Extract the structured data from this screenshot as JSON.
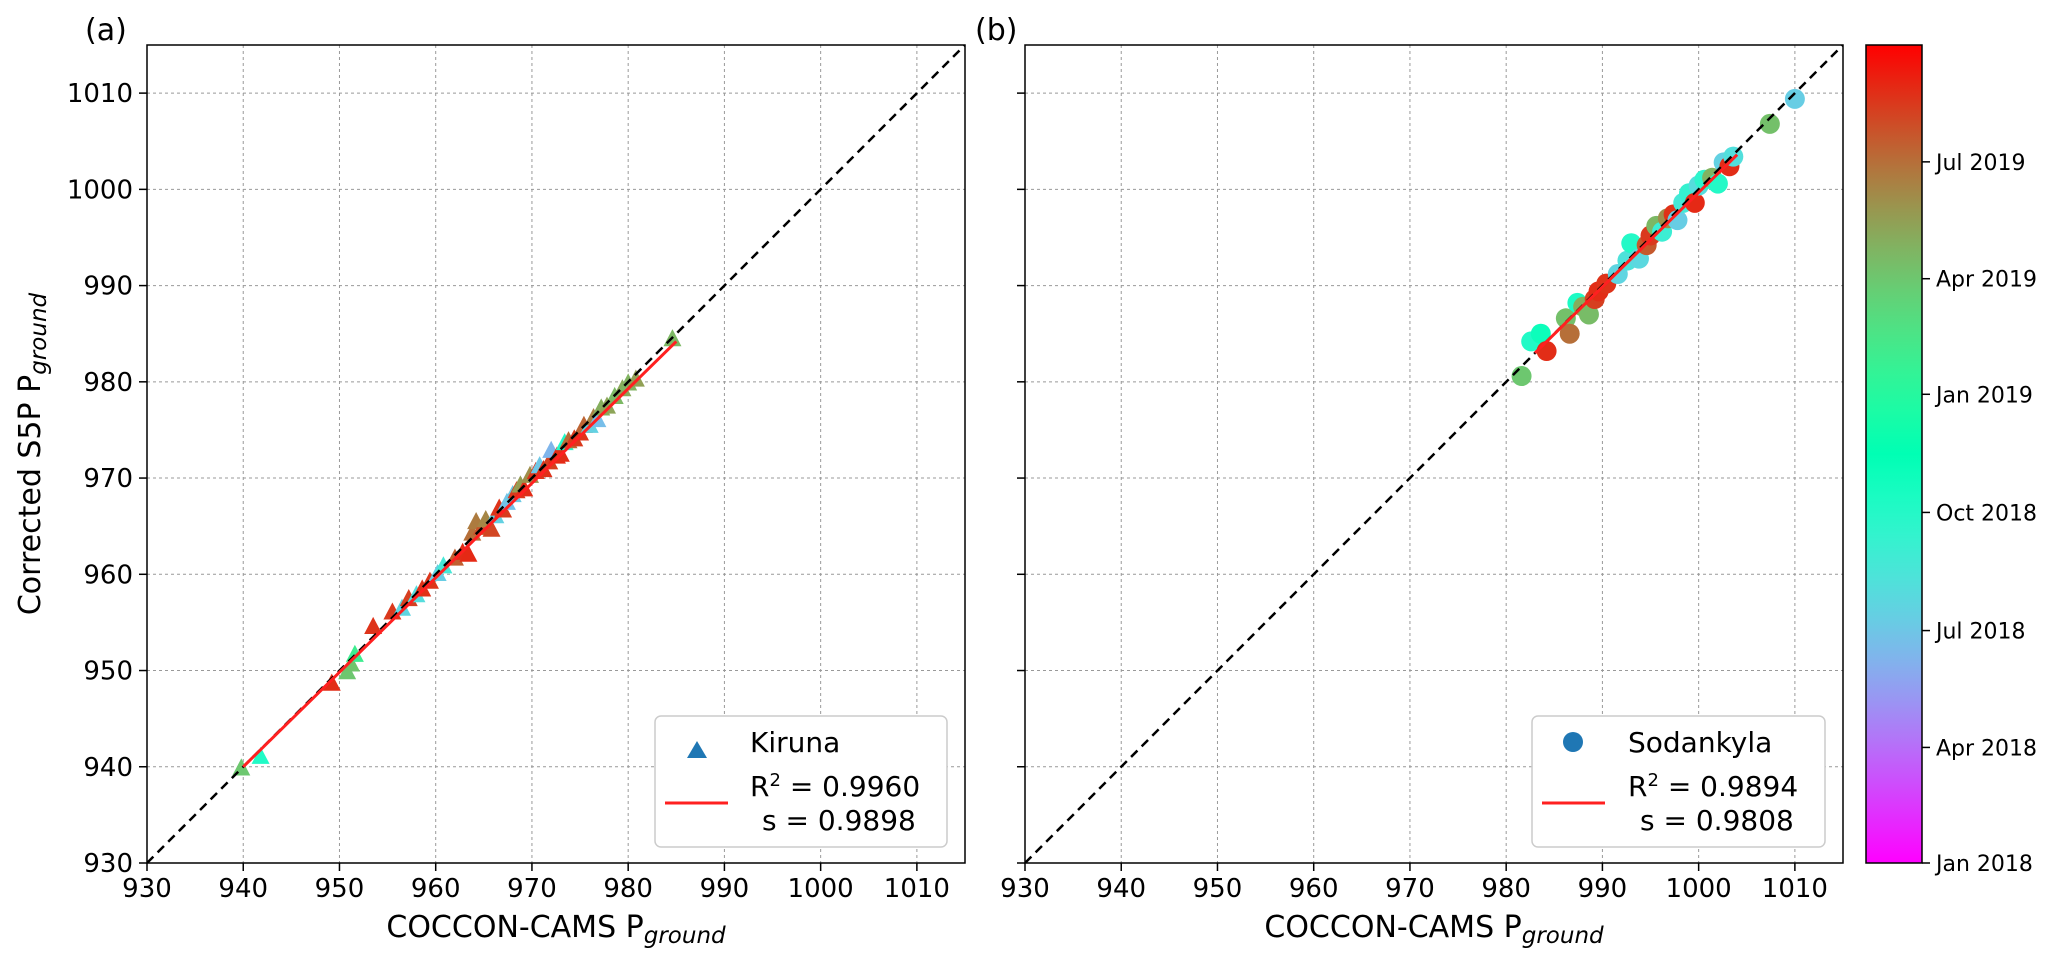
{
  "chart_data": [
    {
      "type": "scatter",
      "panel_label": "(a)",
      "xlabel": "COCCON-CAMS P",
      "xlabel_sub": "ground",
      "ylabel": "Corrected S5P P",
      "ylabel_sub": "ground",
      "xlim": [
        930,
        1015
      ],
      "ylim": [
        930,
        1015
      ],
      "xticks": [
        "930",
        "940",
        "950",
        "960",
        "970",
        "980",
        "990",
        "1000",
        "1010"
      ],
      "yticks": [
        "930",
        "940",
        "950",
        "960",
        "970",
        "980",
        "990",
        "1000",
        "1010"
      ],
      "grid": true,
      "identity_line": true,
      "legend_position": "bottom-right",
      "legend": {
        "series_label": "Kiruna",
        "r2_text": "R",
        "r2_sup": "2",
        "r2_value": " = 0.9960",
        "slope_text": "s = 0.9898"
      },
      "marker": "triangle",
      "marker_legend_color": "#1f77b4",
      "fit_line": {
        "x": [
          940,
          985
        ],
        "y": [
          940.0,
          984.2
        ],
        "color": "#ff2020"
      },
      "points": [
        {
          "x": 939.8,
          "y": 939.8,
          "d": "2019-04-01"
        },
        {
          "x": 941.8,
          "y": 941.0,
          "d": "2018-10-05"
        },
        {
          "x": 949.2,
          "y": 948.6,
          "d": "2019-08-25"
        },
        {
          "x": 950.8,
          "y": 949.8,
          "d": "2019-04-01"
        },
        {
          "x": 951.2,
          "y": 950.6,
          "d": "2019-04-05"
        },
        {
          "x": 951.6,
          "y": 951.6,
          "d": "2019-02-01"
        },
        {
          "x": 953.5,
          "y": 954.5,
          "d": "2019-08-20"
        },
        {
          "x": 955.5,
          "y": 956.0,
          "d": "2019-08-15"
        },
        {
          "x": 956.5,
          "y": 956.4,
          "d": "2018-07-20"
        },
        {
          "x": 957.2,
          "y": 957.4,
          "d": "2019-08-10"
        },
        {
          "x": 958.0,
          "y": 957.8,
          "d": "2018-08-01"
        },
        {
          "x": 958.6,
          "y": 958.4,
          "d": "2019-08-22"
        },
        {
          "x": 959.4,
          "y": 959.2,
          "d": "2019-08-18"
        },
        {
          "x": 960.2,
          "y": 960.0,
          "d": "2018-07-10"
        },
        {
          "x": 960.8,
          "y": 960.8,
          "d": "2018-08-20"
        },
        {
          "x": 962.0,
          "y": 961.6,
          "d": "2019-07-15"
        },
        {
          "x": 962.8,
          "y": 962.2,
          "d": "2019-08-25"
        },
        {
          "x": 963.4,
          "y": 962.0,
          "d": "2019-08-28"
        },
        {
          "x": 963.8,
          "y": 964.2,
          "d": "2019-07-01"
        },
        {
          "x": 964.2,
          "y": 965.4,
          "d": "2019-06-20"
        },
        {
          "x": 964.8,
          "y": 964.8,
          "d": "2019-07-25"
        },
        {
          "x": 965.2,
          "y": 965.6,
          "d": "2019-06-10"
        },
        {
          "x": 965.8,
          "y": 964.6,
          "d": "2019-08-05"
        },
        {
          "x": 966.2,
          "y": 966.0,
          "d": "2018-07-15"
        },
        {
          "x": 966.6,
          "y": 966.8,
          "d": "2019-08-20"
        },
        {
          "x": 967.0,
          "y": 966.6,
          "d": "2019-08-12"
        },
        {
          "x": 967.4,
          "y": 967.4,
          "d": "2018-06-25"
        },
        {
          "x": 968.0,
          "y": 968.2,
          "d": "2018-07-05"
        },
        {
          "x": 968.4,
          "y": 968.6,
          "d": "2019-08-15"
        },
        {
          "x": 968.8,
          "y": 969.2,
          "d": "2019-05-20"
        },
        {
          "x": 969.2,
          "y": 968.8,
          "d": "2019-08-25"
        },
        {
          "x": 969.8,
          "y": 970.2,
          "d": "2019-06-01"
        },
        {
          "x": 970.4,
          "y": 970.6,
          "d": "2019-08-18"
        },
        {
          "x": 970.8,
          "y": 971.2,
          "d": "2018-07-01"
        },
        {
          "x": 971.2,
          "y": 970.8,
          "d": "2019-08-22"
        },
        {
          "x": 971.8,
          "y": 971.6,
          "d": "2019-08-10"
        },
        {
          "x": 972.0,
          "y": 972.8,
          "d": "2018-06-10"
        },
        {
          "x": 972.6,
          "y": 972.2,
          "d": "2019-08-28"
        },
        {
          "x": 973.0,
          "y": 972.4,
          "d": "2019-08-25"
        },
        {
          "x": 973.4,
          "y": 973.6,
          "d": "2018-10-01"
        },
        {
          "x": 973.8,
          "y": 973.8,
          "d": "2019-07-05"
        },
        {
          "x": 974.4,
          "y": 974.0,
          "d": "2019-08-15"
        },
        {
          "x": 975.0,
          "y": 974.6,
          "d": "2019-08-20"
        },
        {
          "x": 975.4,
          "y": 975.4,
          "d": "2019-07-10"
        },
        {
          "x": 976.0,
          "y": 975.4,
          "d": "2018-07-15"
        },
        {
          "x": 976.4,
          "y": 976.2,
          "d": "2019-06-15"
        },
        {
          "x": 976.8,
          "y": 976.0,
          "d": "2018-06-20"
        },
        {
          "x": 977.2,
          "y": 977.2,
          "d": "2019-05-01"
        },
        {
          "x": 977.8,
          "y": 977.4,
          "d": "2019-05-10"
        },
        {
          "x": 978.6,
          "y": 978.4,
          "d": "2019-04-20"
        },
        {
          "x": 979.4,
          "y": 979.2,
          "d": "2019-05-05"
        },
        {
          "x": 980.0,
          "y": 979.8,
          "d": "2019-04-25"
        },
        {
          "x": 980.8,
          "y": 980.2,
          "d": "2019-05-15"
        },
        {
          "x": 984.6,
          "y": 984.4,
          "d": "2019-04-20"
        }
      ]
    },
    {
      "type": "scatter",
      "panel_label": "(b)",
      "xlabel": "COCCON-CAMS P",
      "xlabel_sub": "ground",
      "xlim": [
        930,
        1015
      ],
      "ylim": [
        930,
        1015
      ],
      "xticks": [
        "930",
        "940",
        "950",
        "960",
        "970",
        "980",
        "990",
        "1000",
        "1010"
      ],
      "grid": true,
      "identity_line": true,
      "legend_position": "bottom-right",
      "legend": {
        "series_label": "Sodankyla",
        "r2_text": "R",
        "r2_sup": "2",
        "r2_value": " = 0.9894",
        "slope_text": "s = 0.9808"
      },
      "marker": "circle",
      "marker_legend_color": "#1f77b4",
      "fit_line": {
        "x": [
          983,
          1004
        ],
        "y": [
          983.0,
          1003.6
        ],
        "color": "#ff2020"
      },
      "points": [
        {
          "x": 981.6,
          "y": 980.6,
          "d": "2019-04-01"
        },
        {
          "x": 982.6,
          "y": 984.2,
          "d": "2018-10-05"
        },
        {
          "x": 983.6,
          "y": 985.0,
          "d": "2018-11-01"
        },
        {
          "x": 984.2,
          "y": 983.2,
          "d": "2019-08-25"
        },
        {
          "x": 986.2,
          "y": 986.6,
          "d": "2019-04-10"
        },
        {
          "x": 986.6,
          "y": 985.0,
          "d": "2019-07-01"
        },
        {
          "x": 987.4,
          "y": 988.2,
          "d": "2018-10-10"
        },
        {
          "x": 988.0,
          "y": 987.8,
          "d": "2019-05-01"
        },
        {
          "x": 988.6,
          "y": 987.0,
          "d": "2019-04-15"
        },
        {
          "x": 989.2,
          "y": 988.6,
          "d": "2019-08-10"
        },
        {
          "x": 989.6,
          "y": 989.4,
          "d": "2019-08-25"
        },
        {
          "x": 990.4,
          "y": 990.2,
          "d": "2019-08-20"
        },
        {
          "x": 991.6,
          "y": 991.2,
          "d": "2018-07-20"
        },
        {
          "x": 992.6,
          "y": 992.6,
          "d": "2018-08-10"
        },
        {
          "x": 993.0,
          "y": 994.4,
          "d": "2018-10-01"
        },
        {
          "x": 993.8,
          "y": 992.8,
          "d": "2018-07-25"
        },
        {
          "x": 994.6,
          "y": 994.2,
          "d": "2019-07-20"
        },
        {
          "x": 995.0,
          "y": 995.2,
          "d": "2019-08-15"
        },
        {
          "x": 995.6,
          "y": 996.2,
          "d": "2019-04-20"
        },
        {
          "x": 996.2,
          "y": 995.6,
          "d": "2018-09-01"
        },
        {
          "x": 996.8,
          "y": 997.0,
          "d": "2019-06-01"
        },
        {
          "x": 997.4,
          "y": 997.4,
          "d": "2019-08-22"
        },
        {
          "x": 997.8,
          "y": 996.8,
          "d": "2018-07-10"
        },
        {
          "x": 998.4,
          "y": 998.6,
          "d": "2018-08-20"
        },
        {
          "x": 999.0,
          "y": 999.6,
          "d": "2018-09-10"
        },
        {
          "x": 999.6,
          "y": 998.6,
          "d": "2019-08-28"
        },
        {
          "x": 1000.0,
          "y": 1000.4,
          "d": "2018-08-01"
        },
        {
          "x": 1000.6,
          "y": 1001.0,
          "d": "2018-09-20"
        },
        {
          "x": 1001.4,
          "y": 1001.2,
          "d": "2019-04-25"
        },
        {
          "x": 1002.0,
          "y": 1000.6,
          "d": "2018-10-01"
        },
        {
          "x": 1002.6,
          "y": 1002.8,
          "d": "2018-07-15"
        },
        {
          "x": 1003.2,
          "y": 1002.4,
          "d": "2019-08-25"
        },
        {
          "x": 1003.6,
          "y": 1003.4,
          "d": "2018-08-05"
        },
        {
          "x": 1007.4,
          "y": 1006.8,
          "d": "2019-04-10"
        },
        {
          "x": 1010.0,
          "y": 1009.4,
          "d": "2018-07-10"
        }
      ]
    },
    {
      "type": "colorbar",
      "ticks": [
        "Jan 2018",
        "Apr 2018",
        "Jul 2018",
        "Oct 2018",
        "Jan 2019",
        "Apr 2019",
        "Jul 2019"
      ],
      "tick_dates": [
        "2018-01-01",
        "2018-04-01",
        "2018-07-01",
        "2018-10-01",
        "2019-01-01",
        "2019-04-01",
        "2019-07-01"
      ],
      "range": [
        "2018-01-01",
        "2019-09-30"
      ],
      "colormap": "rainbow"
    }
  ]
}
